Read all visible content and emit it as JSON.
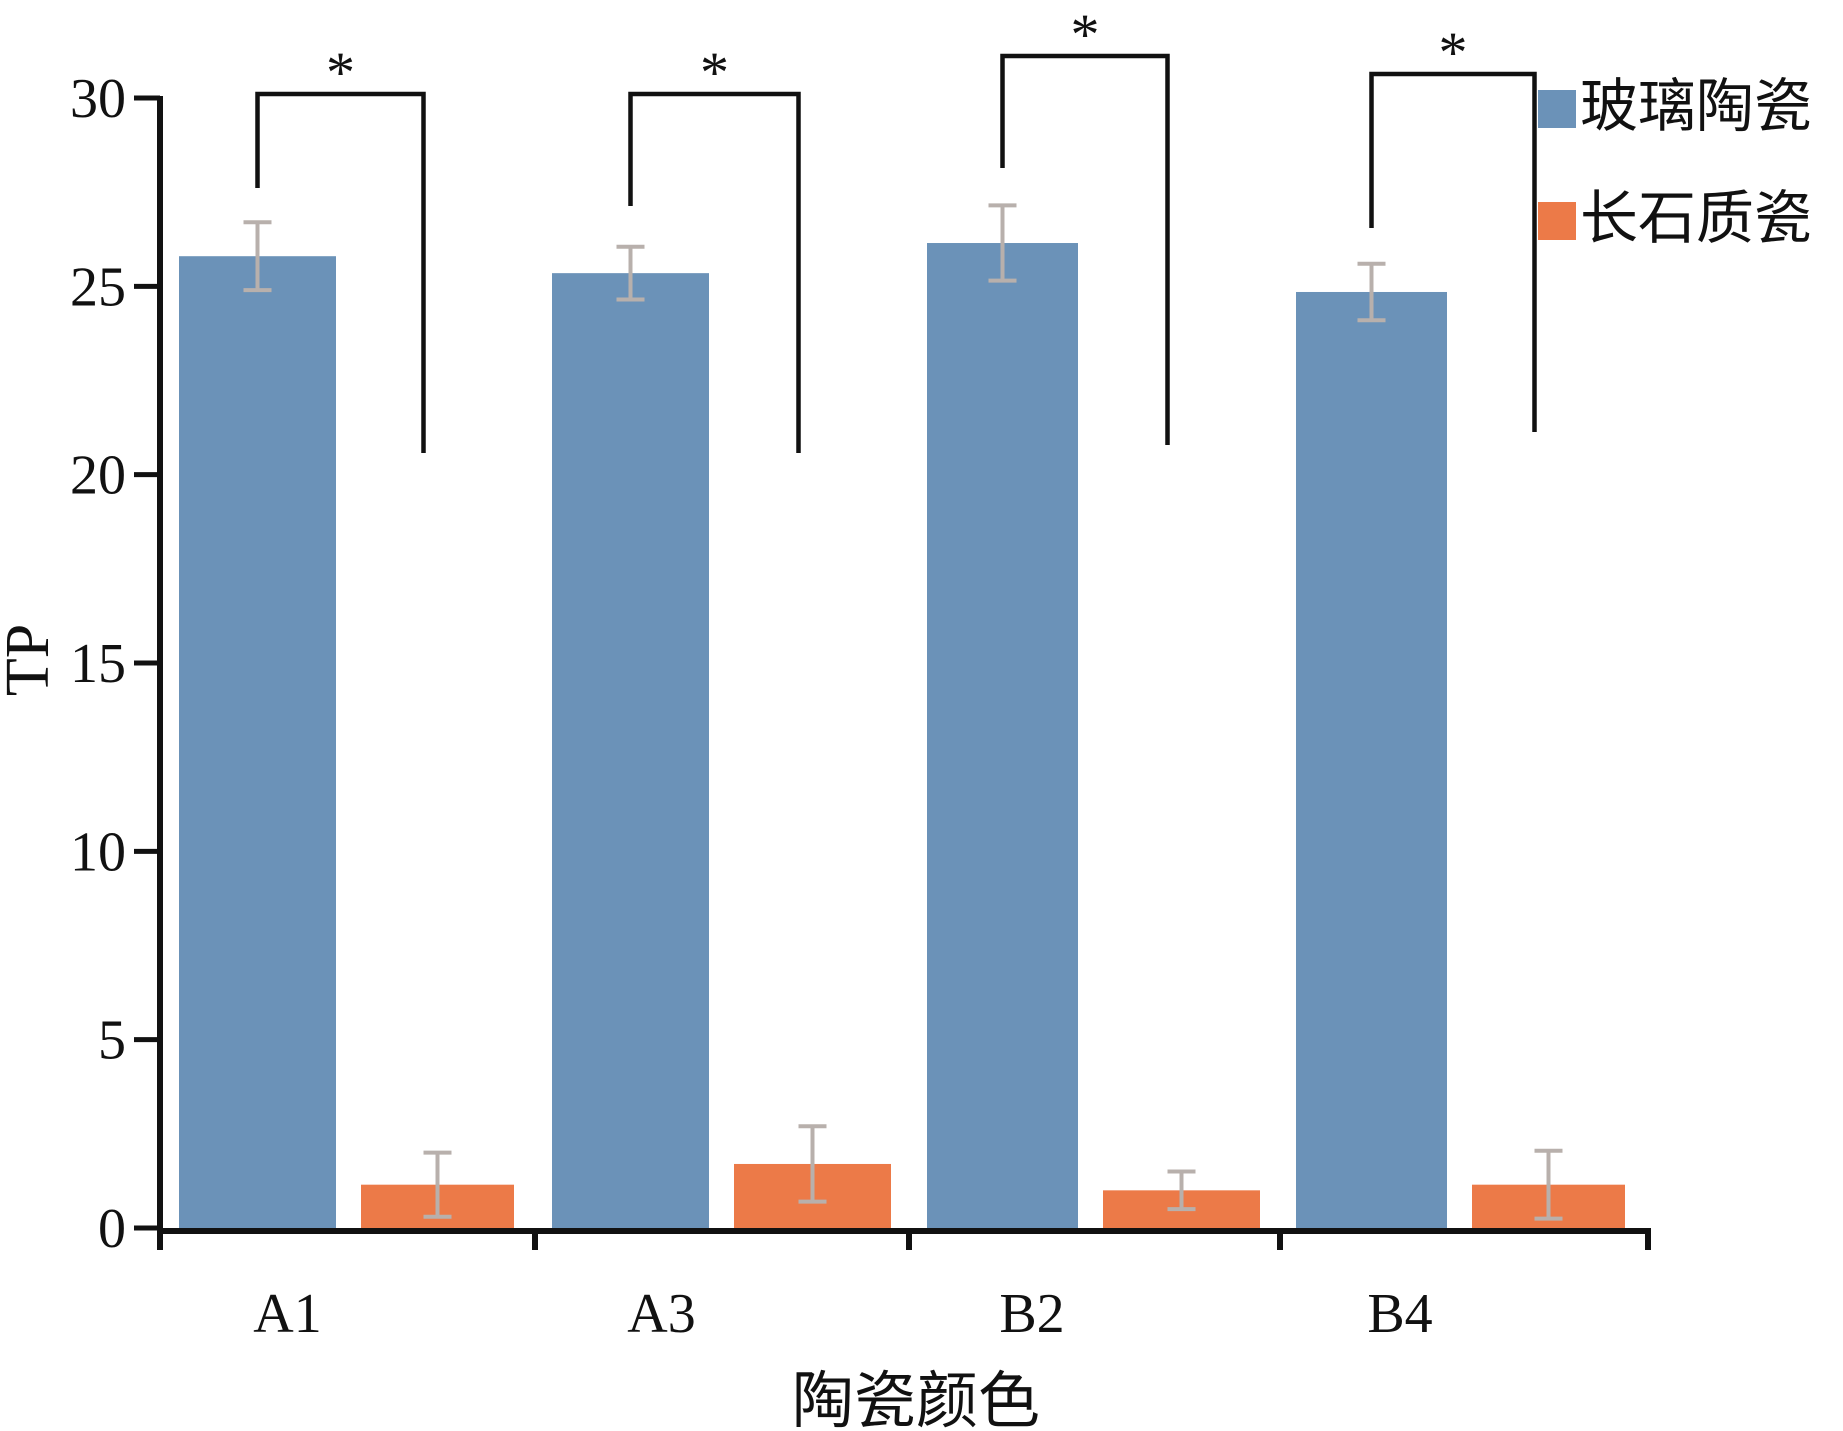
{
  "chart_data": {
    "type": "bar",
    "categories": [
      "A1",
      "A3",
      "B2",
      "B4"
    ],
    "series": [
      {
        "name": "玻璃陶瓷",
        "color": "#6b92b8",
        "values": [
          25.8,
          25.35,
          26.15,
          24.85
        ],
        "errors": [
          0.9,
          0.7,
          1.0,
          0.75
        ]
      },
      {
        "name": "长石质瓷",
        "color": "#ec7a48",
        "values": [
          1.15,
          1.7,
          1.0,
          1.15
        ],
        "errors": [
          0.85,
          1.0,
          0.5,
          0.9
        ]
      }
    ],
    "significance": [
      {
        "category": "A1",
        "label": "*"
      },
      {
        "category": "A3",
        "label": "*"
      },
      {
        "category": "B2",
        "label": "*"
      },
      {
        "category": "B4",
        "label": "*"
      }
    ],
    "xlabel": "陶瓷颜色",
    "ylabel": "TP",
    "ylim": [
      0,
      30
    ],
    "yticks": [
      0,
      5,
      10,
      15,
      20,
      25,
      30
    ],
    "grid": false,
    "legend_position": "top-right",
    "error_bar_color": "#b8b0ac",
    "axis_color": "#111111"
  }
}
